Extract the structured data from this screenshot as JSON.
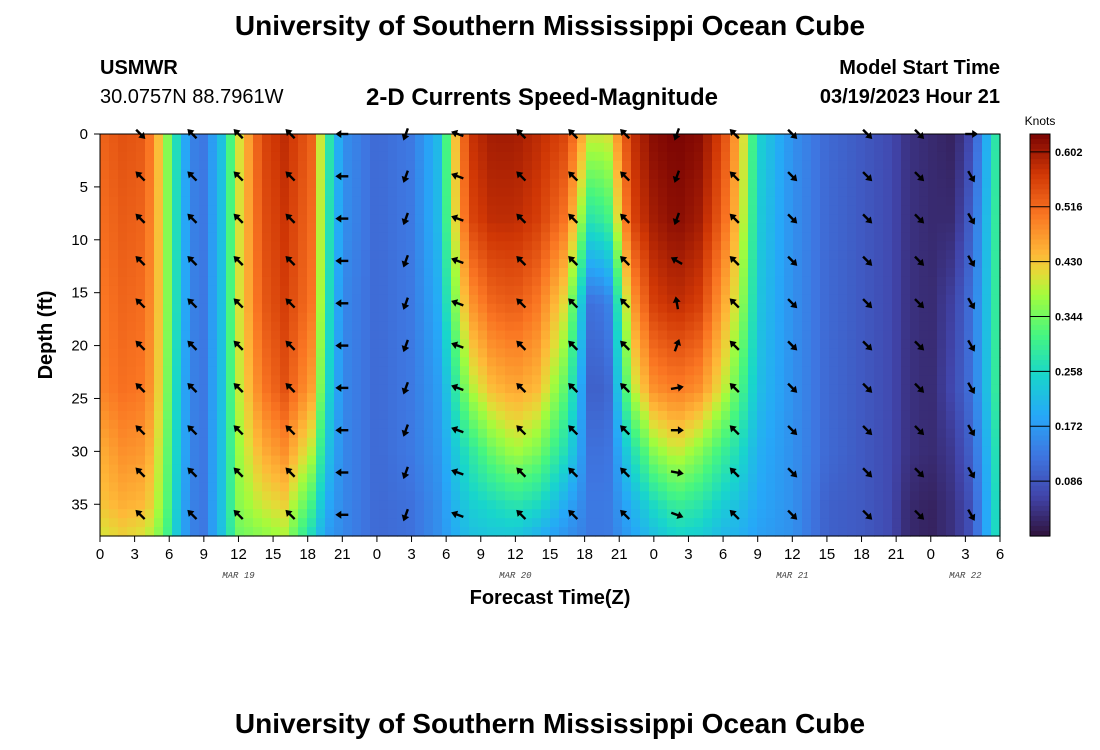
{
  "header": {
    "title": "University of Southern Mississippi Ocean Cube",
    "station": "USMWR",
    "coords": "30.0757N  88.7961W",
    "plot_name": "2-D Currents Speed-Magnitude",
    "model_label": "Model Start Time",
    "model_time": "03/19/2023 Hour 21"
  },
  "footer": {
    "title": "University of Southern Mississippi Ocean Cube"
  },
  "chart_data": {
    "type": "heatmap",
    "title": "2-D Currents Speed-Magnitude",
    "xlabel": "Forecast Time(Z)",
    "ylabel": "Depth (ft)",
    "x_hours_range": [
      0,
      78
    ],
    "ylim": [
      0,
      38
    ],
    "x_tick_labels": [
      "0",
      "3",
      "6",
      "9",
      "12",
      "15",
      "18",
      "21",
      "0",
      "3",
      "6",
      "9",
      "12",
      "15",
      "18",
      "21",
      "0",
      "3",
      "6",
      "9",
      "12",
      "15",
      "18",
      "21",
      "0",
      "3",
      "6"
    ],
    "y_ticks": [
      0,
      5,
      10,
      15,
      20,
      25,
      30,
      35
    ],
    "date_labels": [
      {
        "text": "MAR 19",
        "hour": 12
      },
      {
        "text": "MAR 20",
        "hour": 36
      },
      {
        "text": "MAR 21",
        "hour": 60
      },
      {
        "text": "MAR 22",
        "hour": 75
      }
    ],
    "colorbar": {
      "title": "Knots",
      "min": 0.0,
      "max": 0.63,
      "ticks": [
        0.086,
        0.172,
        0.258,
        0.344,
        0.43,
        0.516,
        0.602
      ],
      "tick_labels": [
        "0.086",
        "0.172",
        "0.258",
        "0.344",
        "0.430",
        "0.516",
        "0.602"
      ]
    },
    "speed_time_hours": [
      0,
      2,
      4,
      5.5,
      7,
      8,
      9,
      10.5,
      12,
      14,
      16,
      18.5,
      19.5,
      21,
      24,
      27,
      29.5,
      30.5,
      32,
      34,
      36,
      38,
      40.5,
      42.5,
      44,
      46,
      48,
      50,
      52,
      54,
      55.5,
      57,
      60,
      63,
      66,
      68.5,
      70,
      72,
      74,
      75.5,
      76.5,
      77.5,
      78
    ],
    "speed_depth_ft": [
      0,
      8,
      16,
      24,
      30,
      35,
      38
    ],
    "speed_knots": [
      [
        0.52,
        0.51,
        0.5,
        0.49,
        0.45,
        0.43,
        0.4
      ],
      [
        0.54,
        0.53,
        0.52,
        0.51,
        0.48,
        0.45,
        0.42
      ],
      [
        0.53,
        0.52,
        0.51,
        0.5,
        0.47,
        0.44,
        0.4
      ],
      [
        0.4,
        0.4,
        0.4,
        0.39,
        0.37,
        0.36,
        0.34
      ],
      [
        0.22,
        0.22,
        0.22,
        0.21,
        0.21,
        0.2,
        0.2
      ],
      [
        0.14,
        0.14,
        0.14,
        0.14,
        0.14,
        0.14,
        0.14
      ],
      [
        0.13,
        0.13,
        0.13,
        0.13,
        0.13,
        0.13,
        0.13
      ],
      [
        0.22,
        0.22,
        0.22,
        0.22,
        0.22,
        0.22,
        0.22
      ],
      [
        0.4,
        0.4,
        0.4,
        0.39,
        0.37,
        0.36,
        0.34
      ],
      [
        0.55,
        0.54,
        0.53,
        0.5,
        0.45,
        0.4,
        0.36
      ],
      [
        0.58,
        0.57,
        0.56,
        0.54,
        0.48,
        0.42,
        0.38
      ],
      [
        0.52,
        0.51,
        0.5,
        0.46,
        0.38,
        0.3,
        0.25
      ],
      [
        0.32,
        0.31,
        0.3,
        0.28,
        0.24,
        0.2,
        0.18
      ],
      [
        0.16,
        0.16,
        0.15,
        0.15,
        0.15,
        0.15,
        0.15
      ],
      [
        0.11,
        0.11,
        0.11,
        0.11,
        0.11,
        0.11,
        0.11
      ],
      [
        0.13,
        0.13,
        0.13,
        0.13,
        0.13,
        0.12,
        0.12
      ],
      [
        0.22,
        0.22,
        0.2,
        0.18,
        0.17,
        0.16,
        0.16
      ],
      [
        0.4,
        0.38,
        0.33,
        0.26,
        0.22,
        0.2,
        0.19
      ],
      [
        0.57,
        0.55,
        0.47,
        0.38,
        0.28,
        0.24,
        0.22
      ],
      [
        0.6,
        0.58,
        0.52,
        0.44,
        0.34,
        0.26,
        0.23
      ],
      [
        0.6,
        0.58,
        0.53,
        0.46,
        0.38,
        0.28,
        0.23
      ],
      [
        0.58,
        0.56,
        0.5,
        0.44,
        0.35,
        0.26,
        0.2
      ],
      [
        0.55,
        0.5,
        0.4,
        0.32,
        0.26,
        0.19,
        0.16
      ],
      [
        0.4,
        0.28,
        0.12,
        0.1,
        0.12,
        0.13,
        0.13
      ],
      [
        0.4,
        0.3,
        0.13,
        0.1,
        0.12,
        0.13,
        0.13
      ],
      [
        0.57,
        0.55,
        0.46,
        0.38,
        0.26,
        0.2,
        0.18
      ],
      [
        0.62,
        0.6,
        0.56,
        0.48,
        0.36,
        0.26,
        0.22
      ],
      [
        0.63,
        0.62,
        0.58,
        0.5,
        0.4,
        0.3,
        0.25
      ],
      [
        0.62,
        0.6,
        0.56,
        0.48,
        0.36,
        0.28,
        0.24
      ],
      [
        0.55,
        0.52,
        0.46,
        0.4,
        0.3,
        0.24,
        0.21
      ],
      [
        0.44,
        0.42,
        0.38,
        0.32,
        0.26,
        0.22,
        0.2
      ],
      [
        0.25,
        0.24,
        0.23,
        0.22,
        0.2,
        0.19,
        0.18
      ],
      [
        0.16,
        0.16,
        0.16,
        0.16,
        0.16,
        0.16,
        0.16
      ],
      [
        0.11,
        0.11,
        0.11,
        0.11,
        0.11,
        0.1,
        0.1
      ],
      [
        0.09,
        0.09,
        0.09,
        0.09,
        0.09,
        0.09,
        0.09
      ],
      [
        0.07,
        0.07,
        0.07,
        0.07,
        0.07,
        0.07,
        0.07
      ],
      [
        0.04,
        0.04,
        0.04,
        0.04,
        0.04,
        0.03,
        0.03
      ],
      [
        0.03,
        0.03,
        0.03,
        0.03,
        0.03,
        0.02,
        0.02
      ],
      [
        0.02,
        0.03,
        0.06,
        0.07,
        0.05,
        0.04,
        0.04
      ],
      [
        0.07,
        0.1,
        0.12,
        0.12,
        0.1,
        0.08,
        0.08
      ],
      [
        0.16,
        0.18,
        0.19,
        0.19,
        0.17,
        0.16,
        0.16
      ],
      [
        0.27,
        0.28,
        0.28,
        0.28,
        0.26,
        0.25,
        0.25
      ],
      [
        0.32,
        0.32,
        0.32,
        0.32,
        0.3,
        0.29,
        0.29
      ]
    ],
    "arrow_time_hours": [
      3.5,
      8,
      12,
      16.5,
      21,
      26.5,
      31,
      36.5,
      41,
      45.5,
      50,
      55,
      60,
      66.5,
      71,
      75.5
    ],
    "arrow_depth_ft": [
      0,
      4,
      8,
      12,
      16,
      20,
      24,
      28,
      32,
      36
    ],
    "arrow_direction_deg": [
      [
        135,
        315,
        315,
        315,
        315,
        315,
        315,
        315,
        315,
        315
      ],
      [
        315,
        315,
        315,
        315,
        315,
        315,
        315,
        315,
        315,
        315
      ],
      [
        315,
        315,
        315,
        315,
        315,
        315,
        315,
        315,
        315,
        315
      ],
      [
        315,
        315,
        315,
        315,
        315,
        315,
        315,
        315,
        315,
        315
      ],
      [
        270,
        270,
        270,
        270,
        270,
        270,
        270,
        270,
        270,
        270
      ],
      [
        200,
        200,
        200,
        200,
        200,
        200,
        200,
        200,
        200,
        200
      ],
      [
        290,
        290,
        290,
        290,
        290,
        290,
        290,
        290,
        290,
        290
      ],
      [
        315,
        315,
        315,
        315,
        315,
        315,
        315,
        315,
        315,
        315
      ],
      [
        315,
        315,
        315,
        315,
        315,
        315,
        315,
        315,
        315,
        315
      ],
      [
        315,
        315,
        315,
        315,
        315,
        315,
        315,
        315,
        315,
        315
      ],
      [
        200,
        200,
        200,
        300,
        350,
        20,
        80,
        90,
        100,
        110
      ],
      [
        315,
        315,
        315,
        315,
        315,
        315,
        315,
        315,
        315,
        315
      ],
      [
        135,
        135,
        135,
        135,
        135,
        135,
        135,
        135,
        135,
        135
      ],
      [
        135,
        135,
        135,
        135,
        135,
        135,
        135,
        135,
        135,
        135
      ],
      [
        135,
        135,
        135,
        135,
        135,
        135,
        135,
        135,
        135,
        135
      ],
      [
        90,
        150,
        150,
        150,
        150,
        150,
        150,
        150,
        150,
        150
      ]
    ]
  }
}
